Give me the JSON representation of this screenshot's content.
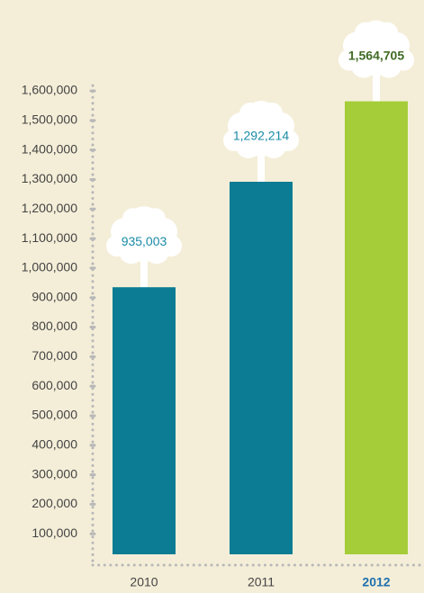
{
  "chart_data": {
    "type": "bar",
    "categories": [
      "2010",
      "2011",
      "2012"
    ],
    "values": [
      935003,
      1292214,
      1564705
    ],
    "value_labels": [
      "935,003",
      "1,292,214",
      "1,564,705"
    ],
    "colors": [
      "#0b7c94",
      "#0b7c94",
      "#a5cd39"
    ],
    "label_colors": [
      "#1a8ba6",
      "#1a8ba6",
      "#3f6b25"
    ],
    "highlight_index": 2,
    "highlight_color": "#1f6fae",
    "ylim": [
      0,
      1600000
    ],
    "yticks": [
      {
        "value": 100000,
        "label": "100,000"
      },
      {
        "value": 200000,
        "label": "200,000"
      },
      {
        "value": 300000,
        "label": "300,000"
      },
      {
        "value": 400000,
        "label": "400,000"
      },
      {
        "value": 500000,
        "label": "500,000"
      },
      {
        "value": 600000,
        "label": "600,000"
      },
      {
        "value": 700000,
        "label": "700,000"
      },
      {
        "value": 800000,
        "label": "800,000"
      },
      {
        "value": 900000,
        "label": "900,000"
      },
      {
        "value": 1000000,
        "label": "1,000,000"
      },
      {
        "value": 1100000,
        "label": "1,100,000"
      },
      {
        "value": 1200000,
        "label": "1,200,000"
      },
      {
        "value": 1300000,
        "label": "1,300,000"
      },
      {
        "value": 1400000,
        "label": "1,400,000"
      },
      {
        "value": 1500000,
        "label": "1,500,000"
      },
      {
        "value": 1600000,
        "label": "1,600,000"
      }
    ]
  }
}
